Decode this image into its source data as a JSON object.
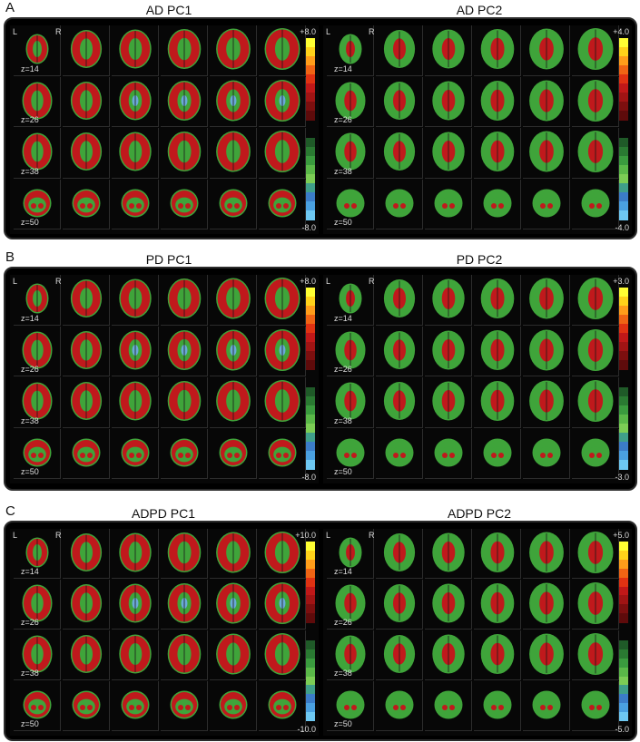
{
  "figure": {
    "sections": [
      {
        "letter": "A",
        "panels": [
          {
            "title": "AD PC1",
            "scale_max": "+8.0",
            "scale_min": "-8.0",
            "left_label": "L",
            "right_label": "R"
          },
          {
            "title": "AD PC2",
            "scale_max": "+4.0",
            "scale_min": "-4.0",
            "left_label": "L",
            "right_label": "R"
          }
        ]
      },
      {
        "letter": "B",
        "panels": [
          {
            "title": "PD PC1",
            "scale_max": "+8.0",
            "scale_min": "-8.0",
            "left_label": "L",
            "right_label": "R"
          },
          {
            "title": "PD PC2",
            "scale_max": "+3.0",
            "scale_min": "-3.0",
            "left_label": "L",
            "right_label": "R"
          }
        ]
      },
      {
        "letter": "C",
        "panels": [
          {
            "title": "ADPD PC1",
            "scale_max": "+10.0",
            "scale_min": "-10.0",
            "left_label": "L",
            "right_label": "R"
          },
          {
            "title": "ADPD PC2",
            "scale_max": "+5.0",
            "scale_min": "-5.0",
            "left_label": "L",
            "right_label": "R"
          }
        ]
      }
    ],
    "z_labels": [
      "z=14",
      "z=26",
      "z=38",
      "z=50"
    ],
    "colorbar_colors": {
      "positive": [
        "#ffff33",
        "#ffd21a",
        "#ff9d1a",
        "#f06414",
        "#e03212",
        "#c01818",
        "#a01414",
        "#7c0f0f",
        "#5e0b0b"
      ],
      "negative": [
        "#1f5a28",
        "#2a7a32",
        "#3a9b3e",
        "#5ab848",
        "#7ccd55",
        "#3f9f8a",
        "#3b7cc8",
        "#4aa0e0",
        "#6ec8f2"
      ]
    },
    "brain_colors": {
      "red": "#c0191c",
      "green": "#3fa43a",
      "blue": "#6aaad8",
      "dark": "#1a1a1a"
    }
  }
}
